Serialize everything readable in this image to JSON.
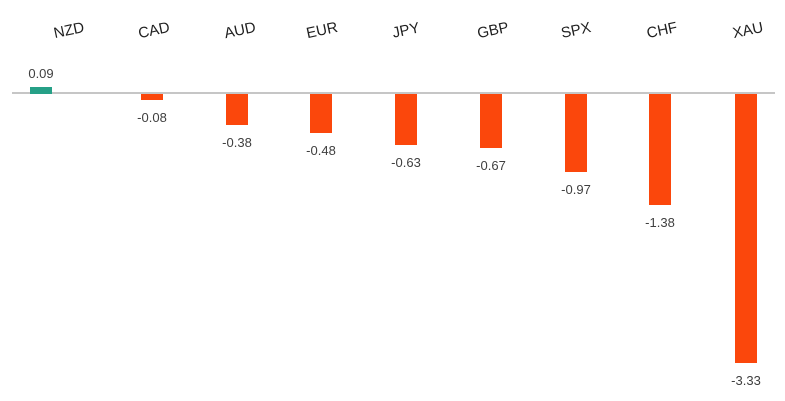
{
  "chart_data": {
    "type": "bar",
    "title": "",
    "xlabel": "",
    "ylabel": "",
    "orientation": "vertical",
    "grid": false,
    "legend_position": "none",
    "categories": [
      "NZD",
      "CAD",
      "AUD",
      "EUR",
      "JPY",
      "GBP",
      "SPX",
      "CHF",
      "XAU"
    ],
    "values": [
      0.09,
      -0.08,
      -0.38,
      -0.48,
      -0.63,
      -0.67,
      -0.97,
      -1.38,
      -3.33
    ],
    "value_labels": [
      "0.09",
      "-0.08",
      "-0.38",
      "-0.48",
      "-0.63",
      "-0.67",
      "-0.97",
      "-1.38",
      "-3.33"
    ],
    "ylim": [
      -3.5,
      0.35
    ],
    "baseline": 0,
    "category_label_position": "top",
    "category_label_rotation_deg": -12,
    "colors": {
      "positive_bar": "#26a087",
      "negative_bar": "#fb470c",
      "zero_line": "#c6c6c6",
      "category_text": "#1f1f1f",
      "value_text": "#3f3f3f"
    }
  }
}
